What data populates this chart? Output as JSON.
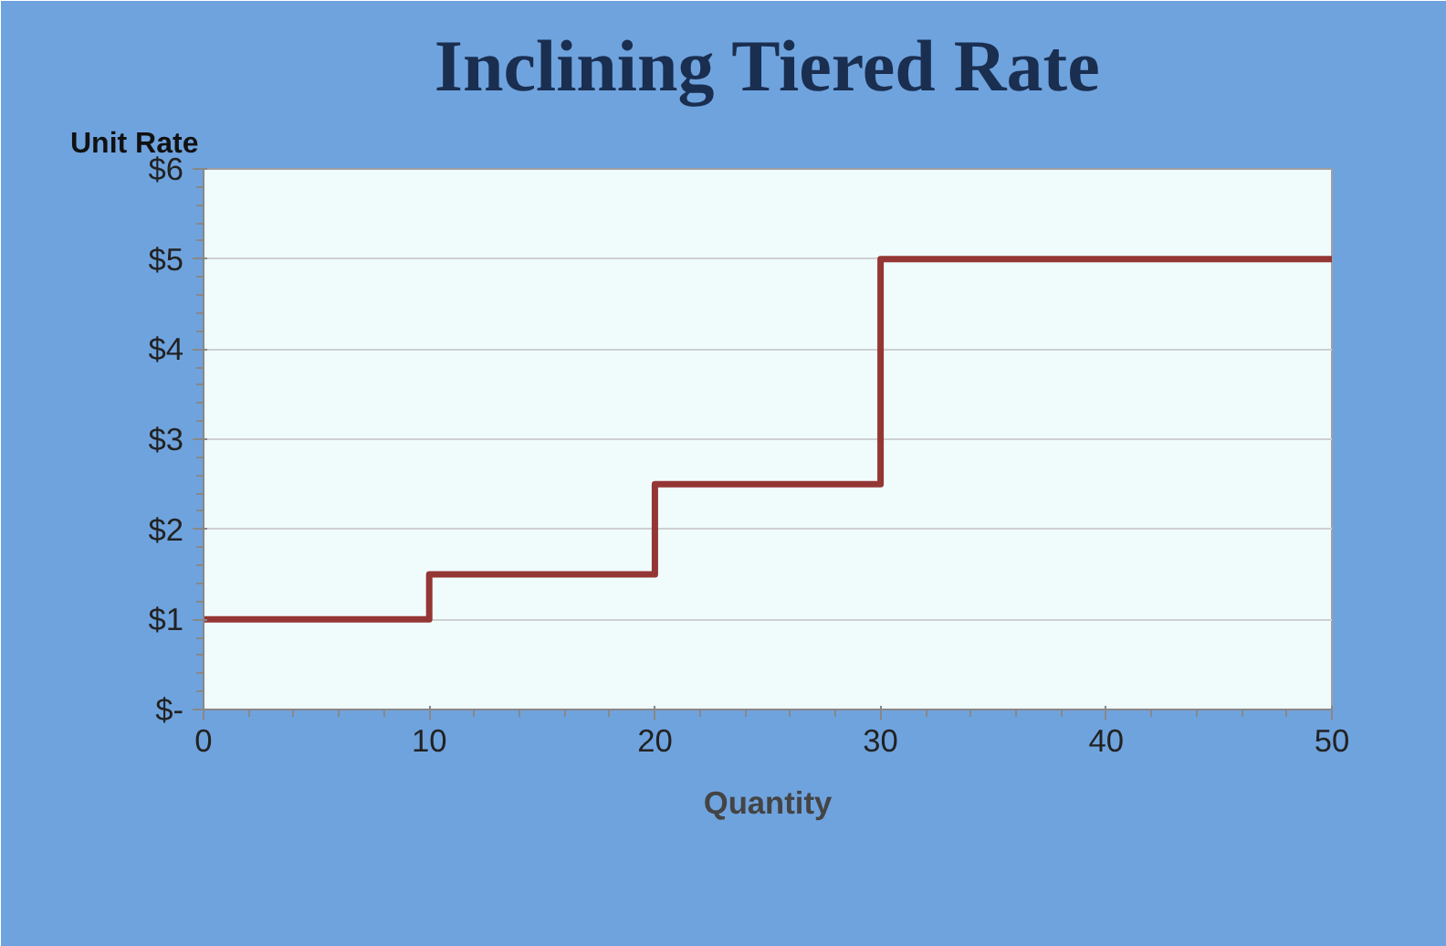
{
  "chart_data": {
    "type": "step",
    "title": "Inclining Tiered Rate",
    "xlabel": "Quantity",
    "ylabel": "Unit Rate",
    "x": [
      0,
      10,
      20,
      30,
      50
    ],
    "series": [
      {
        "color": "#943634",
        "values": [
          1,
          1.5,
          2.5,
          5,
          5
        ]
      }
    ],
    "xlim": [
      0,
      50
    ],
    "xticks": [
      0,
      10,
      20,
      30,
      40,
      50
    ],
    "ylim": [
      0,
      6
    ],
    "yticks": [
      {
        "value": 0,
        "label": "$-"
      },
      {
        "value": 1,
        "label": "$1"
      },
      {
        "value": 2,
        "label": "$2"
      },
      {
        "value": 3,
        "label": "$3"
      },
      {
        "value": 4,
        "label": "$4"
      },
      {
        "value": 5,
        "label": "$5"
      },
      {
        "value": 6,
        "label": "$6"
      }
    ],
    "grid": "y"
  }
}
